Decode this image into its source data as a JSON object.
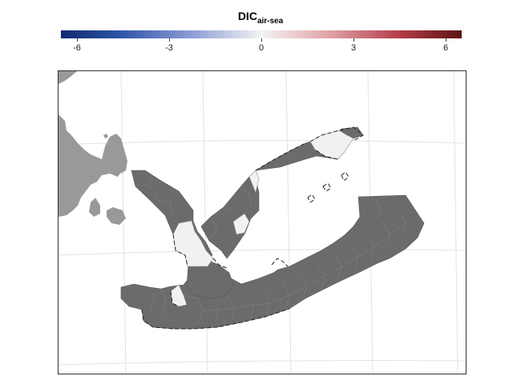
{
  "legend": {
    "title_main": "DIC",
    "title_sub": "air-sea",
    "ticks": [
      "-6",
      "-3",
      "0",
      "3",
      "6"
    ],
    "range": [
      -6.5,
      6.5
    ],
    "colors": {
      "low": "#0d2a6e",
      "mid": "#f4f4f4",
      "high": "#5a1414"
    }
  },
  "map": {
    "land_color": "#999999",
    "region_fill": "#6b6b6b",
    "near_zero_fill": "#f2f1f2",
    "graticule_color": "#e2e2e2"
  }
}
